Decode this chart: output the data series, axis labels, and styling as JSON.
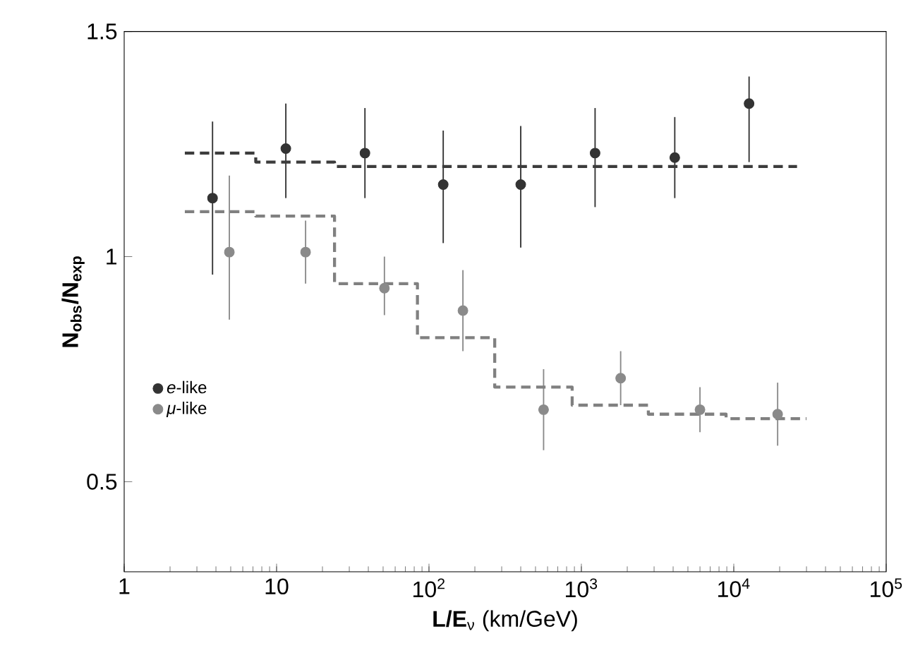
{
  "chart_data": {
    "type": "scatter",
    "xlabel": "**L/E**$_{ν}$ (km/GeV)",
    "ylabel": "N$_{obs}$/N$_{exp}$",
    "log": "x",
    "xlim": [
      1,
      100000
    ],
    "ylim": [
      0.3,
      1.5
    ],
    "xticks": [
      1,
      10,
      {
        "value": 100,
        "label": "10$^{2}$"
      },
      {
        "value": 1000,
        "label": "10$^{3}$"
      },
      {
        "value": 10000,
        "label": "10$^{4}$"
      },
      {
        "value": 100000,
        "label": "10$^{5}$"
      }
    ],
    "yticks": [
      0.5,
      1,
      1.5
    ],
    "grid": false,
    "legend": "left",
    "series": [
      {
        "name": "*e*-like",
        "color": "#333333",
        "marker": "circle",
        "x": [
          3.8,
          11.5,
          38,
          124,
          400,
          1230,
          4100,
          12600
        ],
        "values": [
          1.13,
          1.24,
          1.23,
          1.16,
          1.16,
          1.23,
          1.22,
          1.34
        ],
        "errors": [
          [
            0.96,
            1.3
          ],
          [
            1.13,
            1.34
          ],
          [
            1.13,
            1.33
          ],
          [
            1.03,
            1.28
          ],
          [
            1.02,
            1.29
          ],
          [
            1.11,
            1.33
          ],
          [
            1.13,
            1.31
          ],
          [
            1.21,
            1.4
          ]
        ]
      },
      {
        "name": "*μ*-like",
        "color": "#8a8a8a",
        "marker": "circle",
        "x": [
          4.9,
          15.5,
          51,
          167,
          565,
          1810,
          6000,
          19400
        ],
        "values": [
          1.01,
          1.01,
          0.93,
          0.88,
          0.66,
          0.73,
          0.66,
          0.65
        ],
        "errors": [
          [
            0.86,
            1.18
          ],
          [
            0.94,
            1.08
          ],
          [
            0.87,
            1.0
          ],
          [
            0.79,
            0.97
          ],
          [
            0.57,
            0.75
          ],
          [
            0.67,
            0.79
          ],
          [
            0.61,
            0.71
          ],
          [
            0.58,
            0.72
          ]
        ]
      },
      {
        "type": "step",
        "color": "#3c3c3c",
        "line_style": "dashed",
        "marker": "none",
        "x": [
          2.5,
          7.3,
          24,
          84,
          270,
          870,
          2750,
          8900,
          26000
        ],
        "values": [
          1.23,
          1.21,
          1.2,
          1.2,
          1.2,
          1.2,
          1.2,
          1.2,
          1.2
        ]
      },
      {
        "type": "step",
        "color": "#808080",
        "line_style": "dashed",
        "marker": "none",
        "x": [
          2.5,
          7.3,
          24,
          84,
          270,
          870,
          2750,
          8900,
          30000
        ],
        "values": [
          1.1,
          1.09,
          0.94,
          0.82,
          0.71,
          0.67,
          0.65,
          0.64,
          0.64
        ]
      }
    ]
  }
}
